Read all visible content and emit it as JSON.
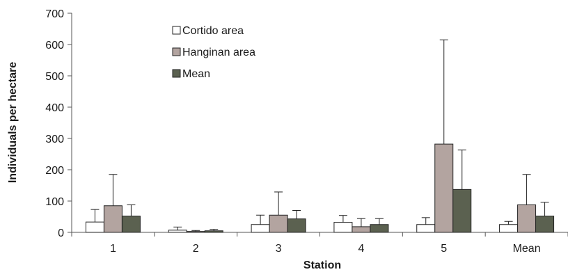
{
  "chart_data": {
    "type": "bar",
    "xlabel": "Station",
    "ylabel": "Individuals per hectare",
    "ylim": [
      0,
      700
    ],
    "yticks": [
      0,
      100,
      200,
      300,
      400,
      500,
      600,
      700
    ],
    "grid": false,
    "legend_position": "top-left",
    "categories": [
      "1",
      "2",
      "3",
      "4",
      "5",
      "Mean"
    ],
    "series": [
      {
        "name": "Cortido area",
        "color": "#ffffff",
        "values": [
          33,
          7,
          25,
          32,
          25,
          25
        ],
        "error": [
          40,
          10,
          30,
          22,
          22,
          10
        ]
      },
      {
        "name": "Hanginan area",
        "color": "#b3a4a0",
        "values": [
          85,
          3,
          55,
          18,
          282,
          88
        ],
        "error": [
          100,
          3,
          74,
          26,
          333,
          97
        ]
      },
      {
        "name": "Mean",
        "color": "#5b6150",
        "values": [
          52,
          5,
          43,
          25,
          137,
          52
        ],
        "error": [
          36,
          5,
          27,
          19,
          126,
          44
        ]
      }
    ]
  }
}
